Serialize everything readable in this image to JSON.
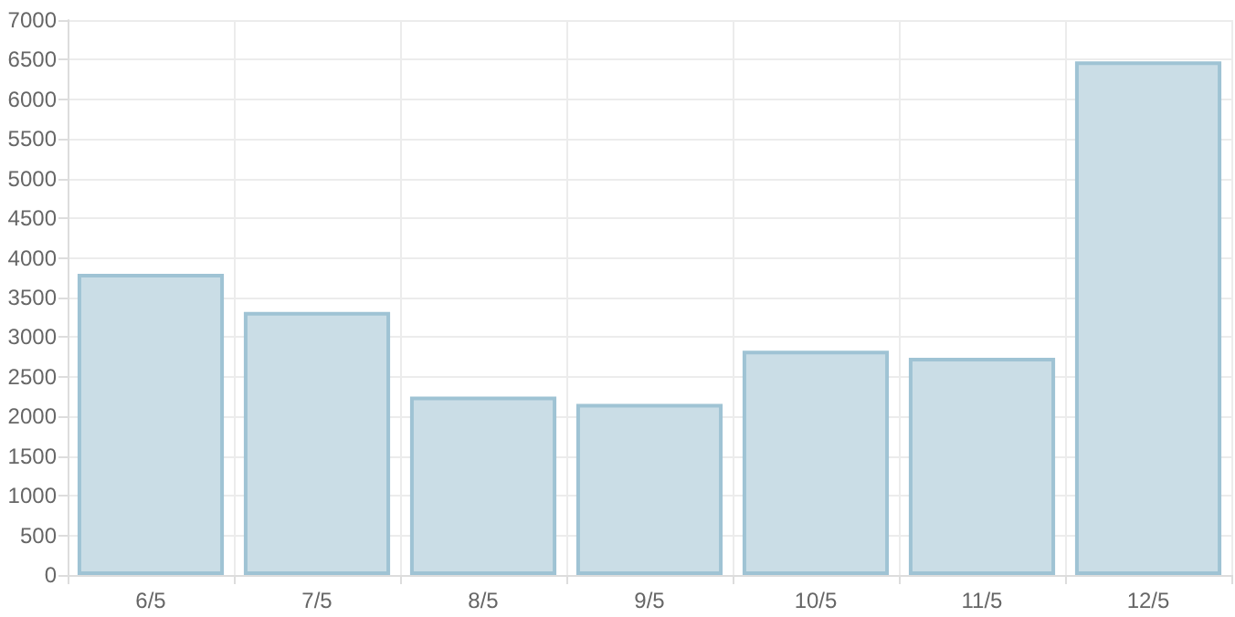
{
  "chart_data": {
    "type": "bar",
    "categories": [
      "6/5",
      "7/5",
      "8/5",
      "9/5",
      "10/5",
      "11/5",
      "12/5"
    ],
    "values": [
      3800,
      3320,
      2250,
      2160,
      2830,
      2740,
      6480
    ],
    "color": "#cadde6",
    "ylim": [
      0,
      7000
    ],
    "yticks": [
      0,
      500,
      1000,
      1500,
      2000,
      2500,
      3000,
      3500,
      4000,
      4500,
      5000,
      5500,
      6000,
      6500,
      7000
    ],
    "grid": true
  }
}
